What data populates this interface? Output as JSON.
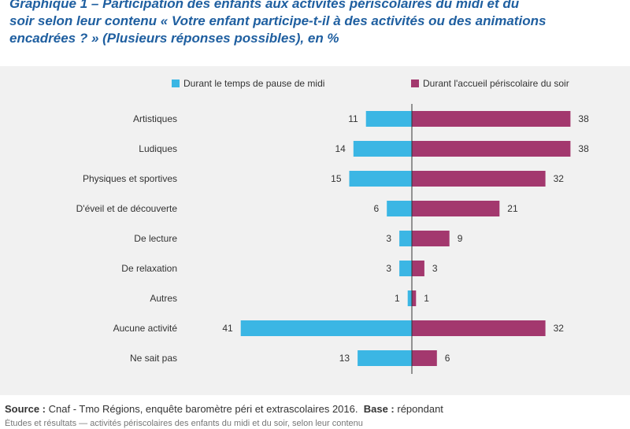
{
  "title_lines": [
    "Graphique 1 – Participation des enfants aux activités périscolaires du midi et du",
    "soir selon leur contenu « Votre enfant participe-t-il à des activités ou des animations",
    "encadrées ? » (Plusieurs réponses possibles), en %"
  ],
  "footer": {
    "source_label": "Source :",
    "source_text": " Cnaf - Tmo Régions, enquête baromètre péri et extrascolaires 2016.",
    "base_label": "Base :",
    "base_text": " répondant",
    "line2": "Études et résultats — activités périscolaires des enfants du midi et du soir, selon leur contenu"
  },
  "colors": {
    "midi": "#3bb6e4",
    "soir": "#a3386e",
    "axis": "#333333",
    "panel": "#f1f1f1"
  },
  "chart_data": {
    "type": "bar",
    "orientation": "horizontal-diverging",
    "categories": [
      "Artistiques",
      "Ludiques",
      "Physiques et sportives",
      "D'éveil et de découverte",
      "De lecture",
      "De relaxation",
      "Autres",
      "Aucune activité",
      "Ne sait pas"
    ],
    "series": [
      {
        "name": "Durant le temps de pause de midi",
        "values": [
          11,
          14,
          15,
          6,
          3,
          3,
          1,
          41,
          13
        ]
      },
      {
        "name": "Durant l'accueil périscolaire du soir",
        "values": [
          38,
          38,
          32,
          21,
          9,
          3,
          1,
          32,
          6
        ]
      }
    ],
    "legend_position": "top-right",
    "grid": false
  }
}
